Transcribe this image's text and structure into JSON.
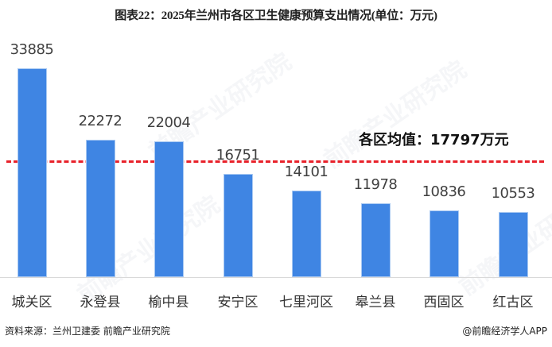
{
  "title": "图表22：2025年兰州市各区卫生健康预算支出情况(单位：万元)",
  "average": {
    "label": "各区均值：17797万元",
    "value": 17797
  },
  "source": "资料来源：兰州卫建委 前瞻产业研究院",
  "credit": "@前瞻经济学人APP",
  "watermark": "前瞻产业研究院",
  "colors": {
    "bar": "#3f85e3",
    "avg_line": "#e8212a"
  },
  "chart_data": {
    "type": "bar",
    "title": "图表22：2025年兰州市各区卫生健康预算支出情况(单位：万元)",
    "xlabel": "",
    "ylabel": "",
    "unit": "万元",
    "categories": [
      "城关区",
      "永登县",
      "榆中县",
      "安宁区",
      "七里河区",
      "皋兰县",
      "西固区",
      "红古区"
    ],
    "values": [
      33885,
      22272,
      22004,
      16751,
      14101,
      11978,
      10836,
      10553
    ],
    "labels": [
      "33885",
      "22272",
      "22004",
      "16751",
      "14101",
      "11978",
      "10836",
      "10553"
    ],
    "reference_line": {
      "label": "各区均值：17797万元",
      "value": 17797,
      "style": "dashed",
      "color": "#e8212a"
    },
    "grid": false,
    "legend": "none",
    "ylim": [
      0,
      35000
    ]
  }
}
